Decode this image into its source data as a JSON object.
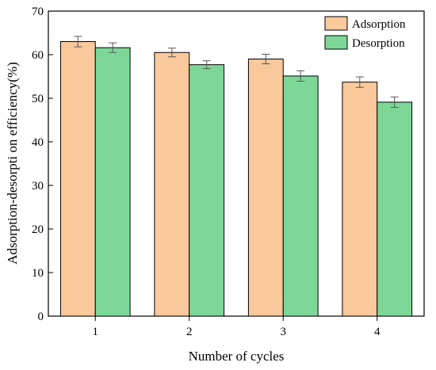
{
  "chart_data": {
    "type": "bar",
    "xlabel": "Number of cycles",
    "ylabel": "Adsorption-desorpti on efficiency(%)",
    "categories": [
      "1",
      "2",
      "3",
      "4"
    ],
    "ylim": [
      0,
      70
    ],
    "yticks": [
      "0",
      "10",
      "20",
      "30",
      "40",
      "50",
      "60",
      "70"
    ],
    "grid": false,
    "legend_position": "top-right",
    "series": [
      {
        "name": "Adsorption",
        "color": "#F9C89B",
        "values": [
          63.0,
          60.5,
          59.0,
          53.7
        ],
        "errors": [
          1.2,
          1.0,
          1.1,
          1.2
        ]
      },
      {
        "name": "Desorption",
        "color": "#7DD898",
        "values": [
          61.6,
          57.7,
          55.1,
          49.1
        ],
        "errors": [
          1.1,
          0.9,
          1.2,
          1.2
        ]
      }
    ]
  }
}
